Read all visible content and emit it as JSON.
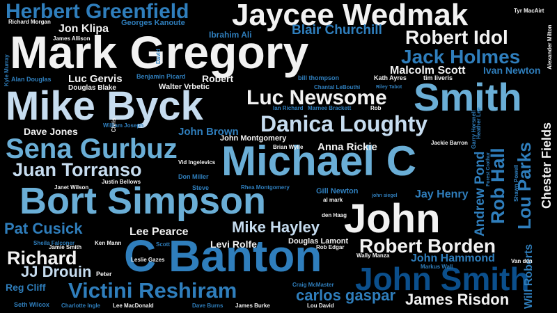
{
  "colors": {
    "background": "#000000",
    "white": "#f2f2f2",
    "light_blue": "#c6dcef",
    "mid_blue": "#6aaed6",
    "blue": "#2f7ebc",
    "dark_blue": "#0b4f8c"
  },
  "words": [
    "Mark Gregory",
    "Mike Byck",
    "Michael C",
    "C Banton",
    "Bort Simpson",
    "John",
    "Jaycee Wedmak",
    "Smith",
    "John Smith",
    "Sena Gurbuz",
    "Herbert Greenfield",
    "Danica Loughty",
    "Victini Reshiram",
    "Juan Torranso",
    "Luc Newsome",
    "Robert Idol",
    "Jack Holmes",
    "Robert Borden",
    "Lou Parks",
    "Rob Hall",
    "Mike Hayley",
    "Pat Cusick",
    "Richard",
    "JJ Drouin",
    "carlos gaspar",
    "James Risdon",
    "Chester Fields",
    "Blair Churchill",
    "Andrew Pond",
    "Jon Klipa",
    "Malcolm Scott",
    "Ivan Newton",
    "Will Roberts",
    "Lee Pearce",
    "John Hammond",
    "Jay Henry",
    "Anna Rickie",
    "John Brown",
    "Dave Jones",
    "Levi Rolfe",
    "Luc Gervis",
    "Reg Cliff",
    "Robert",
    "Ibrahim Ali",
    "Georges Kanoute",
    "John Montgomery",
    "Gill Newton",
    "Douglas Lamont",
    "Walter Vrbetic",
    "Douglas Blake",
    "Richard Morgan",
    "James Allison",
    "Alan Douglas",
    "Benjamin Picard",
    "bill thompson",
    "Kath Ayres",
    "tim liveris",
    "Chantal LeBouthi",
    "Ian Richard",
    "Marnee Brackett",
    "Rob",
    "Heather Lee",
    "Garry Horsnell",
    "Jackie Barron",
    "Shawn Powell",
    "Forest Crothur",
    "Alexander Milton",
    "Tyr MacAirt",
    "Kyle Murray",
    "David",
    "Chris",
    "William Joseph",
    "Brian Wylie",
    "Vid Ingelevics",
    "Don Miller",
    "Justin Bellows",
    "Janet Wilson",
    "Steve",
    "Rhea Montgomery",
    "al mark",
    "john siegel",
    "den Haag",
    "Sheila Falconer",
    "Jamie Smith",
    "Ken Mann",
    "Scott",
    "Leslie Gazes",
    "Rob Edgar",
    "Wally Manza",
    "Markus Wall",
    "Van den",
    "Peter",
    "Craig McMaster",
    "Seth Wilcox",
    "Charlotte Ingle",
    "Lee MacDonald",
    "Dave Burns",
    "James Burke",
    "Lou David",
    "Riley Tabot"
  ]
}
